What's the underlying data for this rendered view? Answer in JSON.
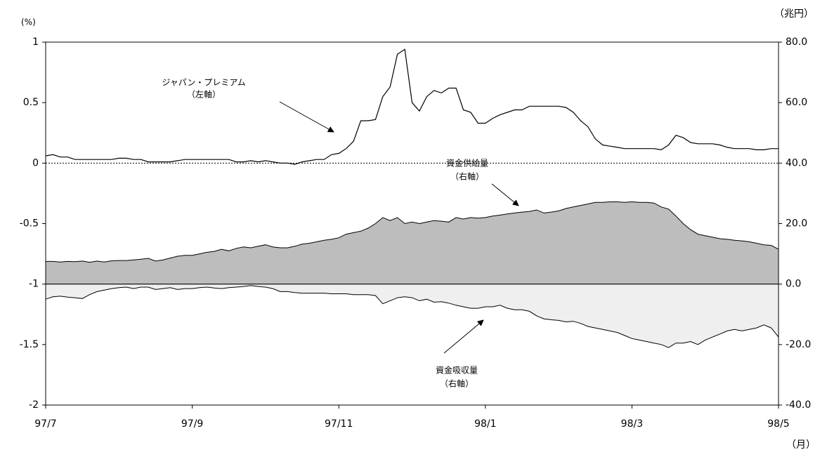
{
  "chart_data": {
    "type": "line",
    "annotations": [
      {
        "lines": [
          "ジャパン・プレミアム",
          "（左軸）"
        ]
      },
      {
        "lines": [
          "資金供給量",
          "（右軸）"
        ]
      },
      {
        "lines": [
          "資金吸収量",
          "（右軸）"
        ]
      }
    ],
    "ylabel": "(%)",
    "y2label": "（兆円）",
    "xlabel": "（月）",
    "x": [
      0,
      0.1,
      0.2,
      0.3,
      0.4,
      0.5,
      0.6,
      0.7,
      0.8,
      0.9,
      1,
      1.1,
      1.2,
      1.3,
      1.4,
      1.5,
      1.6,
      1.7,
      1.8,
      1.9,
      2,
      2.1,
      2.2,
      2.3,
      2.4,
      2.5,
      2.6,
      2.7,
      2.8,
      2.9,
      3,
      3.1,
      3.2,
      3.3,
      3.4,
      3.5,
      3.6,
      3.7,
      3.8,
      3.9,
      4,
      4.1,
      4.2,
      4.3,
      4.4,
      4.5,
      4.6,
      4.7,
      4.8,
      4.9,
      5,
      5.1,
      5.2,
      5.3,
      5.4,
      5.5,
      5.6,
      5.7,
      5.8,
      5.9,
      6,
      6.1,
      6.2,
      6.3,
      6.4,
      6.5,
      6.6,
      6.7,
      6.8,
      6.9,
      7,
      7.1,
      7.2,
      7.3,
      7.4,
      7.5,
      7.6,
      7.7,
      7.8,
      7.9,
      8,
      8.1,
      8.2,
      8.3,
      8.4,
      8.5,
      8.6,
      8.7,
      8.8,
      8.9,
      9,
      9.1,
      9.2,
      9.3,
      9.4,
      9.5,
      9.6,
      9.7,
      9.8,
      9.9,
      10
    ],
    "xlim": [
      0,
      10
    ],
    "xticks": [
      {
        "value": 0,
        "label": "97/7"
      },
      {
        "value": 2,
        "label": "97/9"
      },
      {
        "value": 4,
        "label": "97/11"
      },
      {
        "value": 6,
        "label": "98/1"
      },
      {
        "value": 8,
        "label": "98/3"
      },
      {
        "value": 10,
        "label": "98/5"
      }
    ],
    "ylim": [
      -2,
      1
    ],
    "yticks": [
      1,
      0.5,
      0,
      -0.5,
      -1,
      -1.5,
      -2
    ],
    "y2lim": [
      -40,
      80
    ],
    "y2ticks": [
      {
        "value": 80,
        "label": "80.0"
      },
      {
        "value": 60,
        "label": "60.0"
      },
      {
        "value": 40,
        "label": "40.0"
      },
      {
        "value": 20,
        "label": "20.0"
      },
      {
        "value": 0,
        "label": "0.0"
      },
      {
        "value": -20,
        "label": "-20.0"
      },
      {
        "value": -40,
        "label": "-40.0"
      }
    ],
    "series": [
      {
        "name": "資金供給量",
        "kind": "area",
        "axis": "y2",
        "color": "#bdbdbd",
        "values": [
          7.5,
          7.5,
          7.3,
          7.5,
          7.4,
          7.6,
          7.2,
          7.6,
          7.3,
          7.7,
          7.8,
          7.8,
          8.0,
          8.2,
          8.5,
          7.6,
          8.0,
          8.6,
          9.2,
          9.5,
          9.5,
          10.0,
          10.5,
          10.8,
          11.5,
          11.0,
          11.8,
          12.3,
          12.0,
          12.5,
          13.0,
          12.3,
          12.0,
          12.0,
          12.5,
          13.2,
          13.5,
          14.0,
          14.5,
          14.8,
          15.3,
          16.5,
          17.0,
          17.5,
          18.5,
          20.0,
          22.0,
          21.0,
          22.0,
          20.0,
          20.5,
          20.0,
          20.5,
          21.0,
          20.8,
          20.5,
          22.0,
          21.5,
          22.0,
          21.8,
          22.0,
          22.5,
          22.8,
          23.2,
          23.5,
          23.8,
          24.0,
          24.5,
          23.5,
          23.8,
          24.2,
          25.0,
          25.5,
          26.0,
          26.5,
          27.0,
          27.0,
          27.2,
          27.2,
          27.0,
          27.2,
          27.0,
          27.0,
          26.8,
          25.5,
          24.8,
          22.5,
          20.0,
          18.0,
          16.5,
          16.0,
          15.5,
          15.0,
          14.8,
          14.5,
          14.3,
          14.0,
          13.5,
          13.0,
          12.8,
          11.5
        ]
      },
      {
        "name": "資金吸収量",
        "kind": "area",
        "axis": "y2",
        "color": "#efefef",
        "values": [
          -5.0,
          -4.2,
          -4.0,
          -4.3,
          -4.5,
          -4.8,
          -3.5,
          -2.5,
          -2.0,
          -1.5,
          -1.2,
          -1.0,
          -1.5,
          -1.0,
          -1.0,
          -1.8,
          -1.5,
          -1.2,
          -1.8,
          -1.5,
          -1.5,
          -1.2,
          -1.0,
          -1.3,
          -1.5,
          -1.2,
          -1.0,
          -0.8,
          -0.5,
          -0.8,
          -1.0,
          -1.5,
          -2.5,
          -2.5,
          -2.8,
          -3.0,
          -3.0,
          -3.0,
          -3.0,
          -3.2,
          -3.2,
          -3.2,
          -3.5,
          -3.5,
          -3.5,
          -3.8,
          -6.5,
          -5.5,
          -4.5,
          -4.2,
          -4.5,
          -5.5,
          -5.0,
          -6.0,
          -5.8,
          -6.3,
          -7.0,
          -7.5,
          -8.0,
          -8.0,
          -7.5,
          -7.5,
          -7.0,
          -8.0,
          -8.5,
          -8.5,
          -9.0,
          -10.5,
          -11.5,
          -11.8,
          -12.0,
          -12.5,
          -12.3,
          -13.0,
          -14.0,
          -14.5,
          -15.0,
          -15.5,
          -16.0,
          -17.0,
          -18.0,
          -18.5,
          -19.0,
          -19.5,
          -20.0,
          -21.0,
          -19.5,
          -19.5,
          -19.0,
          -20.0,
          -18.5,
          -17.5,
          -16.5,
          -15.5,
          -15.0,
          -15.5,
          -15.0,
          -14.5,
          -13.5,
          -14.5,
          -17.5
        ]
      },
      {
        "name": "ジャパン・プレミアム",
        "kind": "line",
        "color": "#000000",
        "values": [
          0.06,
          0.07,
          0.05,
          0.05,
          0.03,
          0.03,
          0.03,
          0.03,
          0.03,
          0.03,
          0.04,
          0.04,
          0.03,
          0.03,
          0.01,
          0.01,
          0.01,
          0.01,
          0.02,
          0.03,
          0.03,
          0.03,
          0.03,
          0.03,
          0.03,
          0.03,
          0.01,
          0.01,
          0.02,
          0.01,
          0.02,
          0.01,
          0.0,
          0.0,
          -0.01,
          0.01,
          0.02,
          0.03,
          0.03,
          0.07,
          0.08,
          0.12,
          0.18,
          0.35,
          0.35,
          0.36,
          0.55,
          0.63,
          0.9,
          0.94,
          0.5,
          0.43,
          0.55,
          0.6,
          0.58,
          0.62,
          0.62,
          0.44,
          0.42,
          0.33,
          0.33,
          0.37,
          0.4,
          0.42,
          0.44,
          0.44,
          0.47,
          0.47,
          0.47,
          0.47,
          0.47,
          0.46,
          0.42,
          0.35,
          0.3,
          0.2,
          0.15,
          0.14,
          0.13,
          0.12,
          0.12,
          0.12,
          0.12,
          0.12,
          0.11,
          0.15,
          0.23,
          0.21,
          0.17,
          0.16,
          0.16,
          0.16,
          0.15,
          0.13,
          0.12,
          0.12,
          0.12,
          0.11,
          0.11,
          0.12,
          0.12
        ]
      }
    ]
  }
}
